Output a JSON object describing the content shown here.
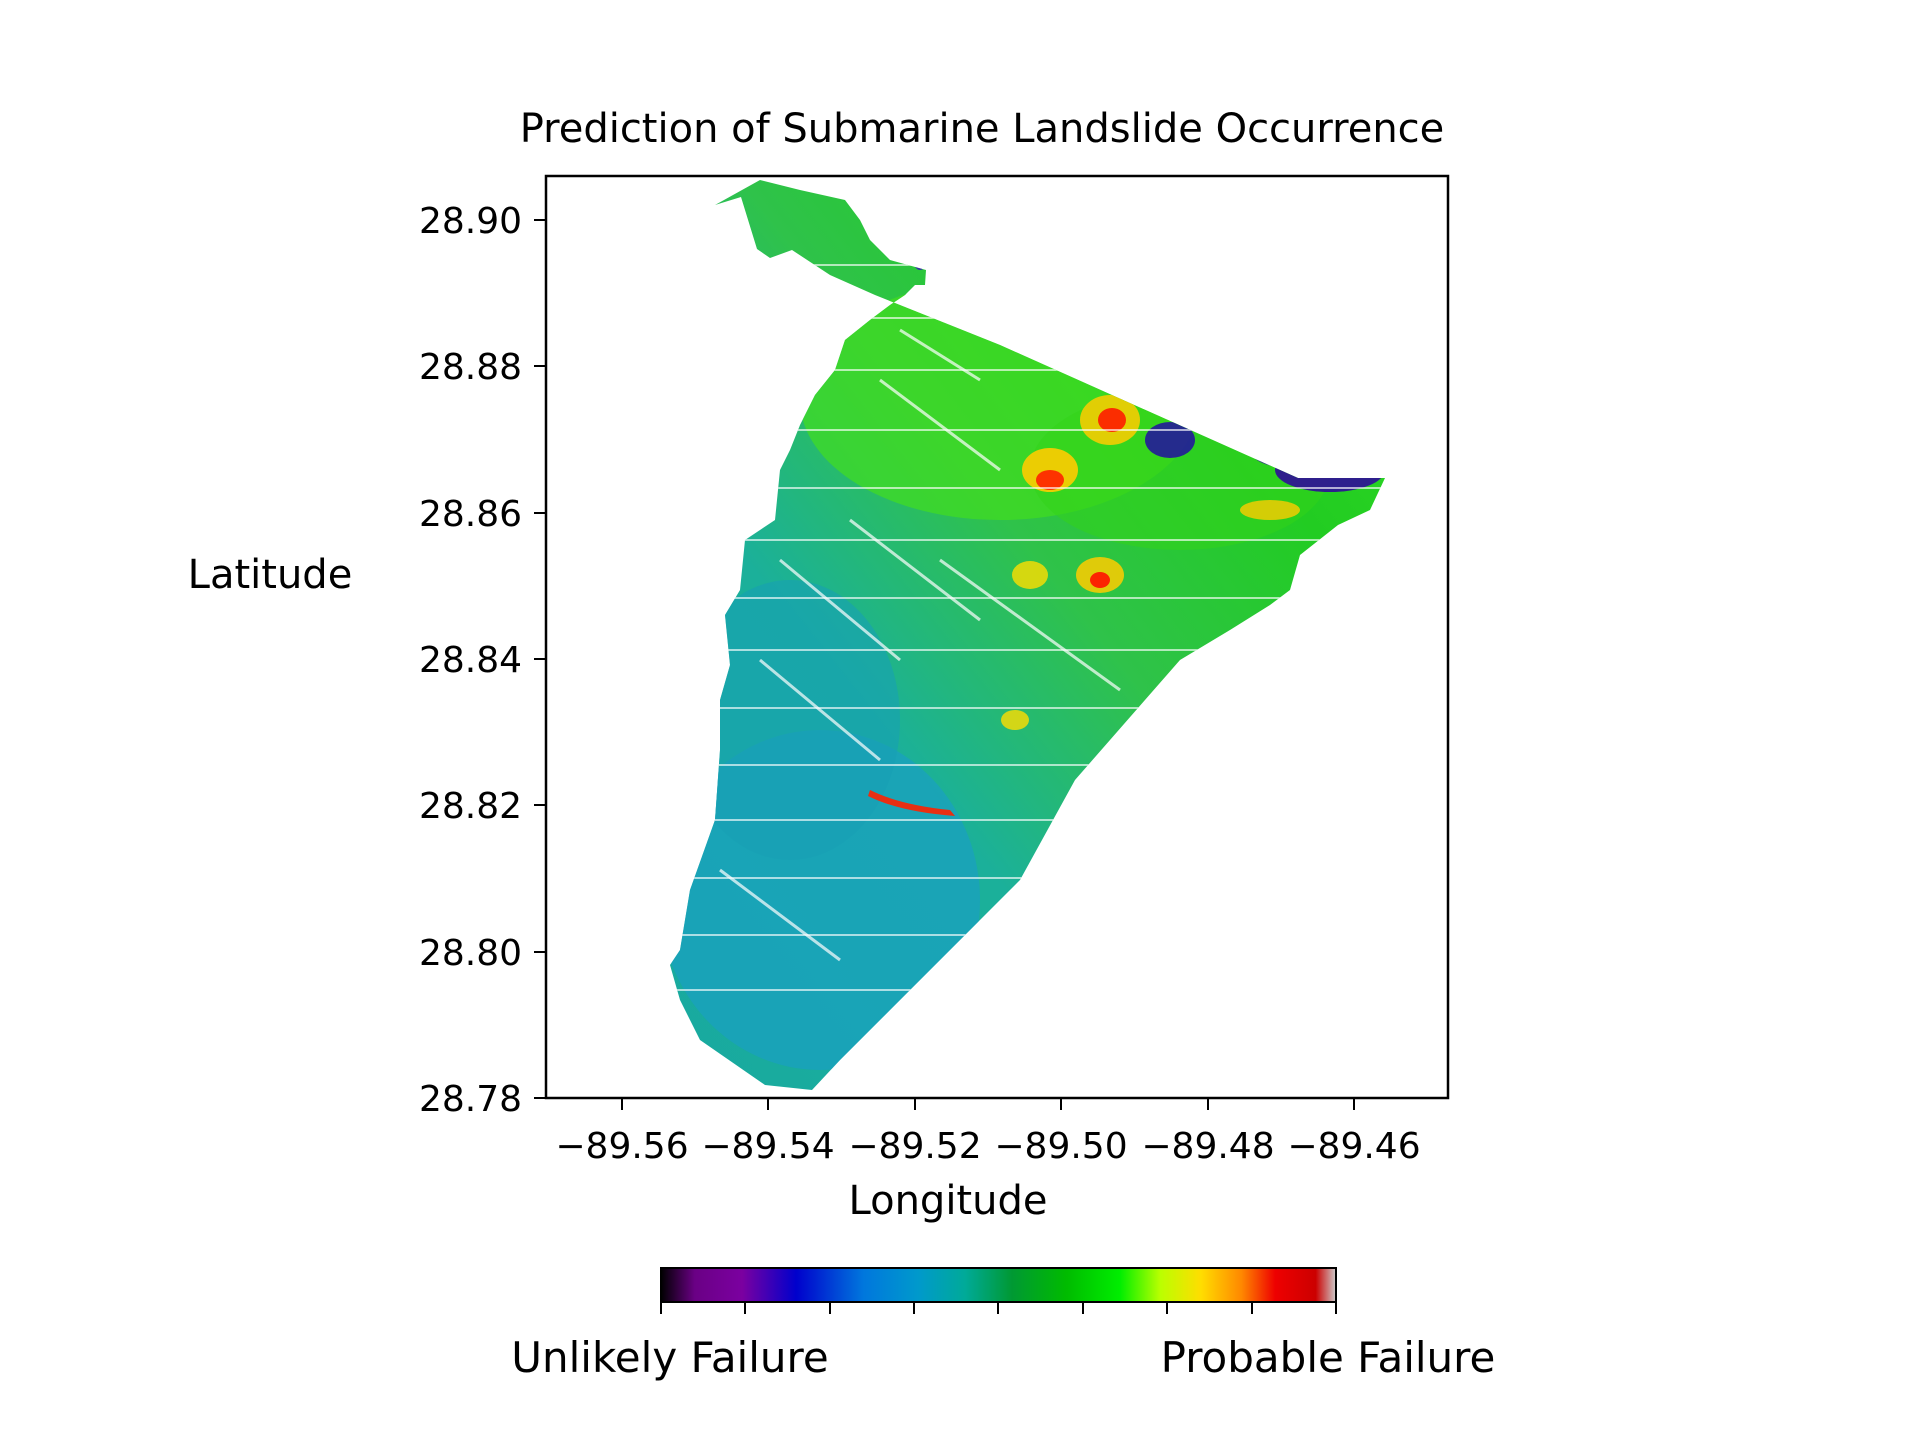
{
  "title": "Prediction of Submarine Landslide Occurrence",
  "xlabel": "Longitude",
  "ylabel": "Latitude",
  "xticks": [
    "−89.56",
    "−89.54",
    "−89.52",
    "−89.50",
    "−89.48",
    "−89.46"
  ],
  "yticks": [
    "28.90",
    "28.88",
    "28.86",
    "28.84",
    "28.82",
    "28.80",
    "28.78"
  ],
  "colorbar": {
    "low_label": "Unlikely Failure",
    "high_label": "Probable Failure",
    "colormap": "nipy_spectral",
    "tick_count": 9
  },
  "map": {
    "x_range": [
      -89.57,
      -89.447
    ],
    "y_range": [
      28.78,
      28.906
    ],
    "dominant_colors": [
      "#00c800",
      "#00aaaa",
      "#0088cc",
      "#ffd700",
      "#ff0000",
      "#3a00b0"
    ]
  }
}
